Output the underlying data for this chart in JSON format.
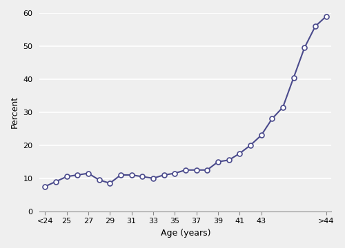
{
  "y_values": [
    7.5,
    9.0,
    10.5,
    11.0,
    11.5,
    9.5,
    8.5,
    11.0,
    11.0,
    10.5,
    10.0,
    11.0,
    11.5,
    12.5,
    12.5,
    12.5,
    15.0,
    15.5,
    17.5,
    20.0,
    23.0,
    28.0,
    31.5,
    40.5,
    49.5,
    56.0,
    59.0
  ],
  "x_tick_positions": [
    0,
    2,
    4,
    6,
    8,
    10,
    12,
    14,
    16,
    18,
    20,
    26
  ],
  "x_tick_labels": [
    "<24",
    "25",
    "27",
    "29",
    "31",
    "33",
    "35",
    "37",
    "39",
    "41",
    "43",
    ">44"
  ],
  "line_color": "#4a4a8c",
  "marker_face_color": "white",
  "marker_edge_color": "#4a4a8c",
  "marker_size": 5,
  "marker_edge_width": 1.2,
  "line_width": 1.5,
  "xlabel": "Age (years)",
  "ylabel": "Percent",
  "ylim": [
    0,
    60
  ],
  "yticks": [
    0,
    10,
    20,
    30,
    40,
    50,
    60
  ],
  "bg_color": "#efefef",
  "grid_color": "#ffffff",
  "grid_linewidth": 1.2
}
